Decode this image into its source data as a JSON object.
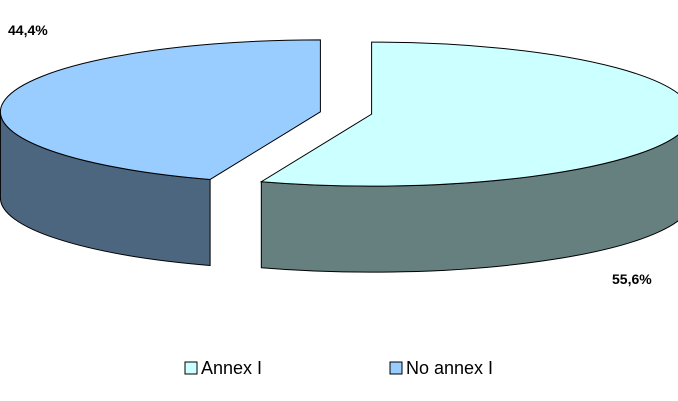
{
  "chart_data": {
    "type": "pie",
    "title": "",
    "slices": [
      {
        "label": "Annex I",
        "value": 55.6,
        "data_label": "55,6%",
        "top_color": "#ccffff",
        "side_color": "#668080"
      },
      {
        "label": "No annex I",
        "value": 44.4,
        "data_label": "44,4%",
        "top_color": "#99ccff",
        "side_color": "#4c6680"
      }
    ],
    "start_angle_deg": 90,
    "direction": "clockwise",
    "exploded": true,
    "three_d": true,
    "legend_position": "bottom"
  }
}
